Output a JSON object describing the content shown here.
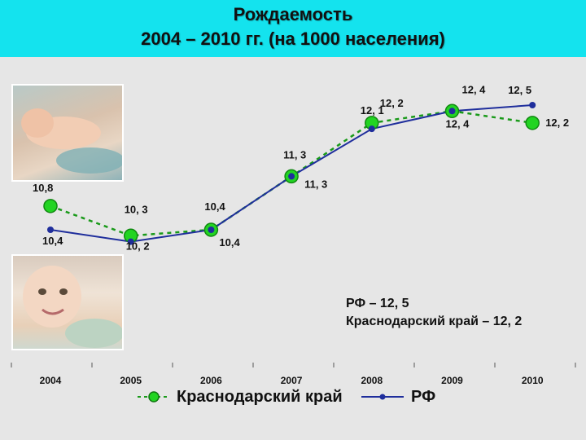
{
  "title": {
    "line1": "Рождаемость",
    "line2": "2004 – 2010 гг.  (на 1000 населения)"
  },
  "summary": {
    "line1": "РФ – 12, 5",
    "line2": "Краснодарский  край – 12, 2"
  },
  "colors": {
    "title_bg": "#14e3ee",
    "background": "#e6e6e6",
    "krasnodar_line": "#1a9a1a",
    "krasnodar_marker": "#22d422",
    "rf_line": "#1f2e9c",
    "rf_marker": "#1f2e9c"
  },
  "chart_data": {
    "type": "line",
    "categories": [
      "2004",
      "2005",
      "2006",
      "2007",
      "2008",
      "2009",
      "2010"
    ],
    "series": [
      {
        "name": "Краснодарский край",
        "values": [
          10.8,
          10.3,
          10.4,
          11.3,
          12.2,
          12.4,
          12.2
        ],
        "labels": [
          "10,8",
          "10, 3",
          "10,4",
          "11, 3",
          "12, 2",
          "12, 4",
          "12, 2"
        ],
        "style": "dashed",
        "marker": "circle-large"
      },
      {
        "name": "РФ",
        "values": [
          10.4,
          10.2,
          10.4,
          11.3,
          12.1,
          12.4,
          12.5
        ],
        "labels": [
          "10,4",
          "10, 2",
          "10,4",
          "11, 3",
          "12, 1",
          "12, 4",
          "12, 5"
        ],
        "style": "solid",
        "marker": "circle-small"
      }
    ],
    "grid": false,
    "legend": "bottom"
  }
}
